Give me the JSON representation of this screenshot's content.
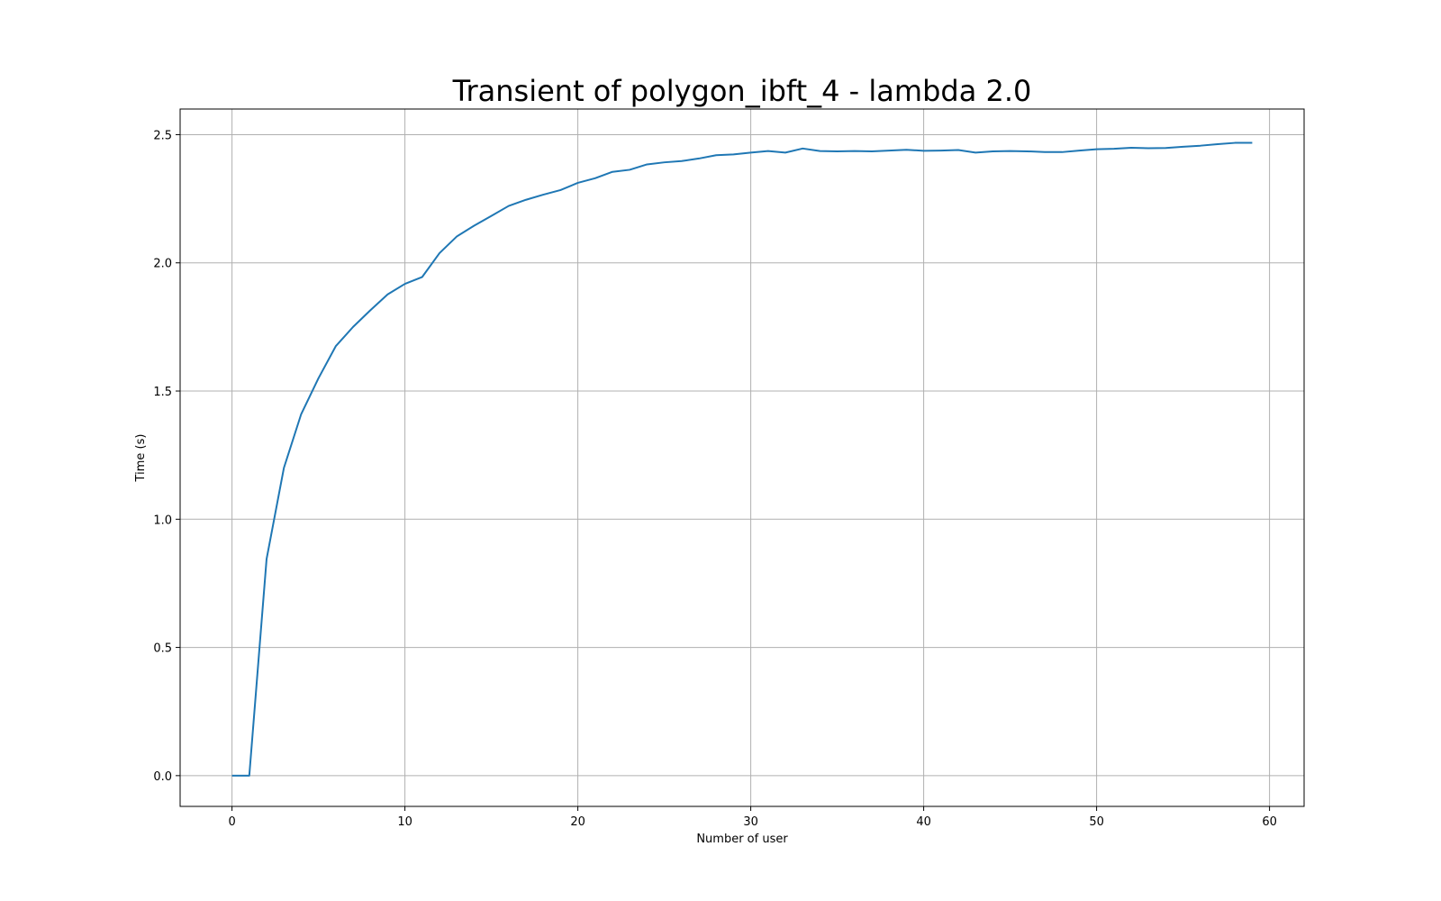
{
  "chart_data": {
    "type": "line",
    "title": "Transient of polygon_ibft_4 - lambda 2.0",
    "xlabel": "Number of user",
    "ylabel": "Time (s)",
    "xlim": [
      -3,
      62
    ],
    "ylim": [
      -0.12,
      2.6
    ],
    "xticks": [
      0,
      10,
      20,
      30,
      40,
      50,
      60
    ],
    "yticks": [
      0.0,
      0.5,
      1.0,
      1.5,
      2.0,
      2.5
    ],
    "xtick_labels": [
      "0",
      "10",
      "20",
      "30",
      "40",
      "50",
      "60"
    ],
    "ytick_labels": [
      "0.0",
      "0.5",
      "1.0",
      "1.5",
      "2.0",
      "2.5"
    ],
    "grid": true,
    "series": [
      {
        "color": "#1f77b4",
        "x": [
          0,
          1,
          2,
          3,
          4,
          5,
          6,
          7,
          8,
          9,
          10,
          11,
          12,
          13,
          14,
          15,
          16,
          17,
          18,
          19,
          20,
          21,
          22,
          23,
          24,
          25,
          26,
          27,
          28,
          29,
          30,
          31,
          32,
          33,
          34,
          35,
          36,
          37,
          38,
          39,
          40,
          41,
          42,
          43,
          44,
          45,
          46,
          47,
          48,
          49,
          50,
          51,
          52,
          53,
          54,
          55,
          56,
          57,
          58,
          59
        ],
        "y": [
          0.0,
          0.0,
          0.845,
          1.2,
          1.41,
          1.55,
          1.675,
          1.75,
          1.815,
          1.877,
          1.918,
          1.945,
          2.038,
          2.103,
          2.145,
          2.183,
          2.222,
          2.246,
          2.266,
          2.284,
          2.312,
          2.33,
          2.355,
          2.363,
          2.384,
          2.392,
          2.397,
          2.407,
          2.42,
          2.423,
          2.43,
          2.436,
          2.43,
          2.446,
          2.436,
          2.435,
          2.436,
          2.435,
          2.438,
          2.441,
          2.437,
          2.438,
          2.44,
          2.43,
          2.435,
          2.436,
          2.435,
          2.432,
          2.432,
          2.438,
          2.443,
          2.445,
          2.449,
          2.447,
          2.448,
          2.453,
          2.457,
          2.463,
          2.468,
          2.468
        ]
      }
    ]
  }
}
